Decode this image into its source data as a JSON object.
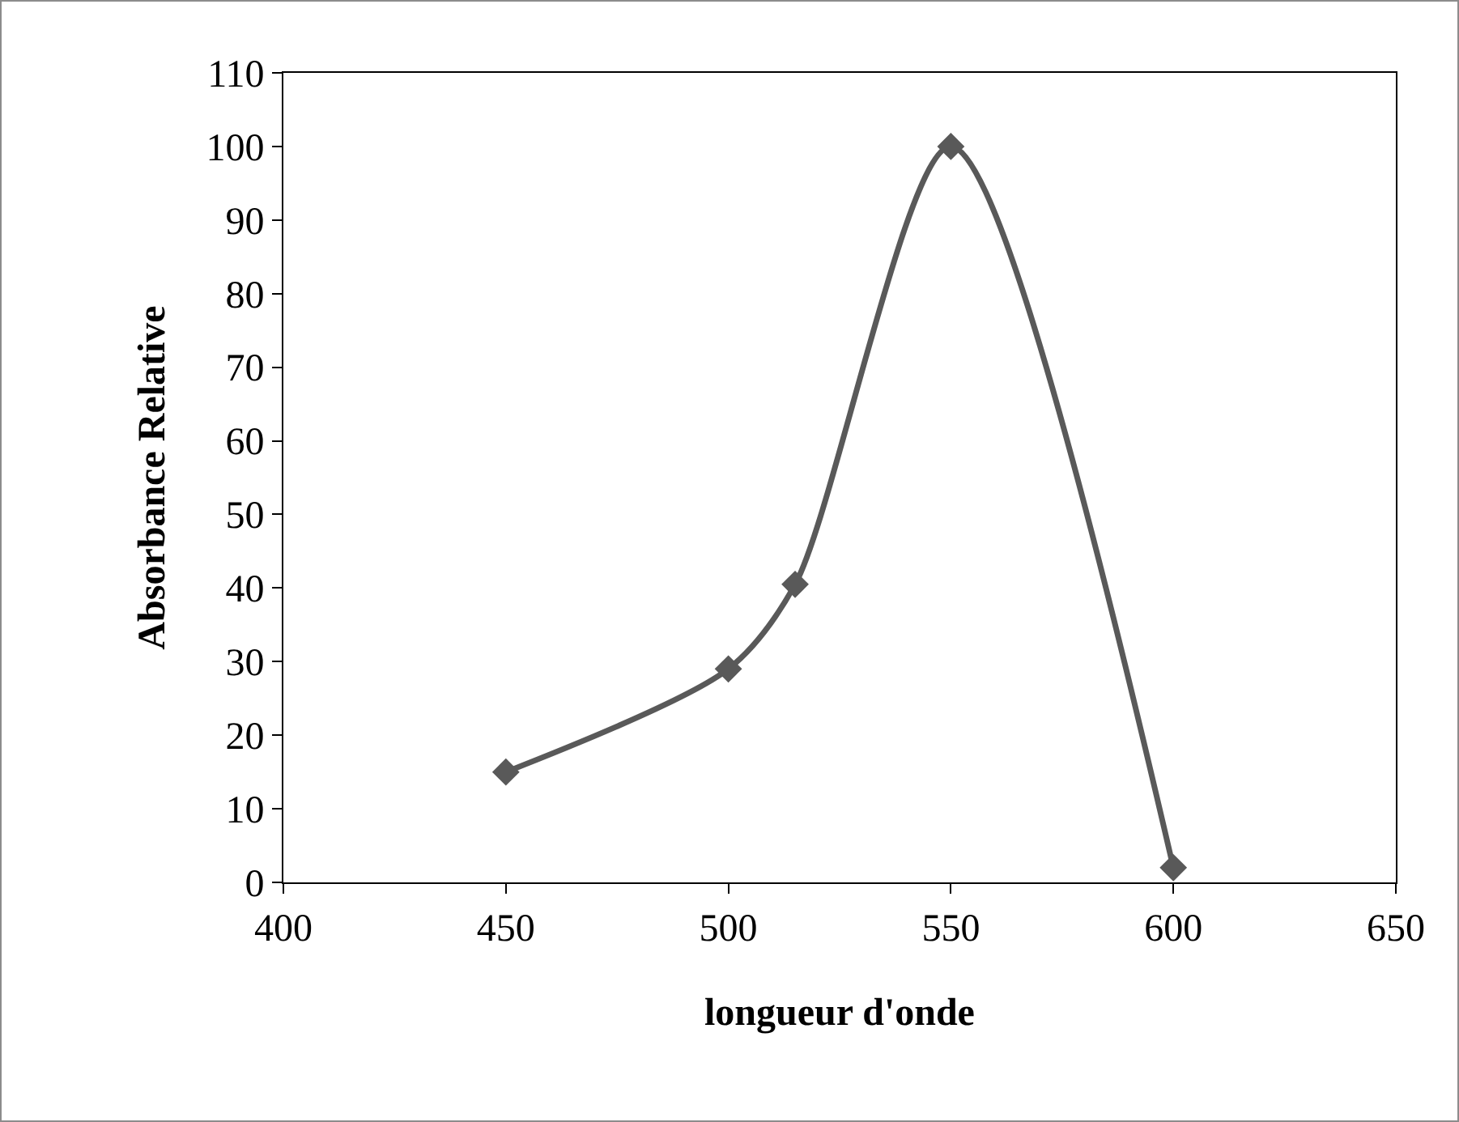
{
  "chart_data": {
    "type": "line",
    "xlabel": "longueur d'onde",
    "ylabel": "Absorbance Relative",
    "x": [
      450,
      500,
      515,
      550,
      600
    ],
    "series": [
      {
        "color": "#595959",
        "values": [
          15,
          29,
          40.5,
          100,
          2
        ]
      }
    ],
    "xlim": [
      400,
      650
    ],
    "xticks": [
      400,
      450,
      500,
      550,
      600,
      650
    ],
    "ylim": [
      0,
      110
    ],
    "yticks": [
      0,
      10,
      20,
      30,
      40,
      50,
      60,
      70,
      80,
      90,
      100,
      110
    ],
    "grid": false,
    "marker": "diamond",
    "line_style": "solid"
  }
}
